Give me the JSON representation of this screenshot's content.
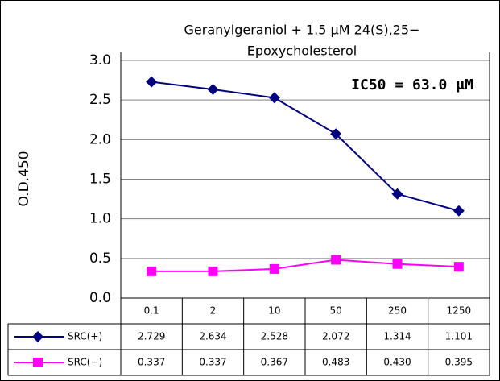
{
  "chart_data": {
    "type": "line",
    "title": [
      "Geranylgeraniol  + 1.5 μM 24(S),25−",
      "Epoxycholesterol"
    ],
    "annotation": "IC50 = 63.0 μM",
    "y_label": "O.D.450",
    "categories": [
      "0.1",
      "2",
      "10",
      "50",
      "250",
      "1250"
    ],
    "series": [
      {
        "name": "SRC(+)",
        "color": "#000080",
        "marker": "diamond",
        "values": [
          2.729,
          2.634,
          2.528,
          2.072,
          1.314,
          1.101
        ],
        "value_labels": [
          "2.729",
          "2.634",
          "2.528",
          "2.072",
          "1.314",
          "1.101"
        ]
      },
      {
        "name": "SRC(−)",
        "color": "#ff00ff",
        "marker": "square",
        "values": [
          0.337,
          0.337,
          0.367,
          0.483,
          0.43,
          0.395
        ],
        "value_labels": [
          "0.337",
          "0.337",
          "0.367",
          "0.483",
          "0.430",
          "0.395"
        ]
      }
    ],
    "ylim": [
      0,
      3
    ],
    "yticks": [
      {
        "value": 0,
        "label": "0.0"
      },
      {
        "value": 0.5,
        "label": "0.5"
      },
      {
        "value": 1,
        "label": "1.0"
      },
      {
        "value": 1.5,
        "label": "1.5"
      },
      {
        "value": 2,
        "label": "2.0"
      },
      {
        "value": 2.5,
        "label": "2.5"
      },
      {
        "value": 3,
        "label": "3.0"
      }
    ],
    "grid": true
  }
}
